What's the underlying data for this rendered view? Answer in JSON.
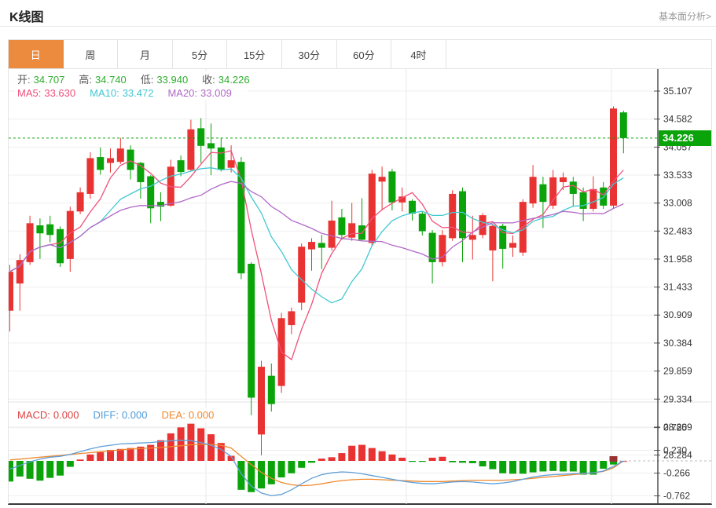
{
  "header": {
    "title": "K线图",
    "link": "基本面分析>"
  },
  "tabs": {
    "items": [
      {
        "label": "日",
        "active": true
      },
      {
        "label": "周",
        "active": false
      },
      {
        "label": "月",
        "active": false
      },
      {
        "label": "5分",
        "active": false
      },
      {
        "label": "15分",
        "active": false
      },
      {
        "label": "30分",
        "active": false
      },
      {
        "label": "60分",
        "active": false
      },
      {
        "label": "4时",
        "active": false
      }
    ],
    "active_color": "#ec8b3d"
  },
  "legend": {
    "ohlc": [
      {
        "label": "开:",
        "value": "34.707"
      },
      {
        "label": "高:",
        "value": "34.740"
      },
      {
        "label": "低:",
        "value": "33.940"
      },
      {
        "label": "收:",
        "value": "34.226"
      }
    ],
    "ohlc_value_color": "#2eae2e",
    "ma": [
      {
        "label": "MA5:",
        "value": "33.630",
        "color": "#f0507a"
      },
      {
        "label": "MA10:",
        "value": "33.472",
        "color": "#41c8d2"
      },
      {
        "label": "MA20:",
        "value": "33.009",
        "color": "#b168c8"
      }
    ]
  },
  "macd_legend": [
    {
      "label": "MACD:",
      "value": "0.000",
      "color": "#dd4444"
    },
    {
      "label": "DIFF:",
      "value": "0.000",
      "color": "#4f9bd8"
    },
    {
      "label": "DEA:",
      "value": "0.000",
      "color": "#f0892e"
    }
  ],
  "chart_data": {
    "type": "candlestick+macd",
    "title": "K线图",
    "period_selected": "日",
    "current_price": 34.226,
    "current_price_label": "34.226",
    "price_axis": {
      "ticks": [
        "35.107",
        "34.582",
        "34.057",
        "33.533",
        "33.008",
        "32.483",
        "31.958",
        "31.433",
        "30.909",
        "30.384",
        "29.859",
        "29.334",
        "28.809",
        "28.284"
      ],
      "min": 28.284,
      "max": 35.107
    },
    "candles": [
      [
        30.99,
        31.85,
        30.6,
        31.72
      ],
      [
        31.5,
        32.05,
        30.99,
        31.94
      ],
      [
        31.9,
        32.77,
        31.85,
        32.63
      ],
      [
        32.59,
        32.72,
        31.96,
        32.44
      ],
      [
        32.61,
        32.77,
        32.27,
        32.41
      ],
      [
        32.52,
        32.57,
        31.81,
        31.88
      ],
      [
        31.96,
        32.94,
        31.72,
        32.86
      ],
      [
        32.85,
        33.3,
        32.8,
        33.21
      ],
      [
        33.18,
        33.96,
        33.09,
        33.85
      ],
      [
        33.87,
        34.05,
        33.54,
        33.63
      ],
      [
        33.76,
        34.03,
        33.58,
        33.85
      ],
      [
        33.78,
        34.23,
        33.74,
        34.03
      ],
      [
        34.01,
        34.09,
        33.45,
        33.63
      ],
      [
        33.76,
        33.78,
        33.09,
        33.4
      ],
      [
        33.51,
        33.53,
        32.63,
        32.91
      ],
      [
        33.03,
        33.21,
        32.67,
        32.94
      ],
      [
        32.96,
        33.82,
        32.94,
        33.69
      ],
      [
        33.81,
        33.9,
        33.51,
        33.59
      ],
      [
        33.63,
        34.57,
        33.6,
        34.39
      ],
      [
        34.41,
        34.6,
        33.76,
        34.08
      ],
      [
        34.13,
        34.5,
        33.53,
        34.03
      ],
      [
        34.05,
        34.23,
        33.6,
        33.63
      ],
      [
        33.67,
        34.09,
        33.58,
        33.81
      ],
      [
        33.78,
        33.87,
        31.58,
        31.69
      ],
      [
        31.87,
        31.9,
        29.03,
        29.36
      ],
      [
        28.67,
        30.05,
        28.28,
        29.94
      ],
      [
        29.77,
        30.0,
        29.1,
        29.24
      ],
      [
        29.58,
        30.95,
        29.45,
        30.85
      ],
      [
        30.72,
        31.05,
        30.55,
        30.98
      ],
      [
        31.14,
        32.25,
        31.0,
        32.19
      ],
      [
        32.14,
        32.35,
        31.74,
        32.28
      ],
      [
        32.26,
        32.41,
        31.77,
        32.17
      ],
      [
        32.17,
        33.05,
        32.12,
        32.68
      ],
      [
        32.74,
        32.9,
        32.32,
        32.41
      ],
      [
        32.36,
        33.01,
        32.3,
        32.63
      ],
      [
        32.59,
        33.1,
        32.3,
        32.32
      ],
      [
        32.26,
        33.63,
        32.2,
        33.56
      ],
      [
        33.41,
        33.69,
        32.87,
        33.5
      ],
      [
        33.6,
        33.65,
        32.87,
        33.02
      ],
      [
        33.02,
        33.3,
        32.85,
        33.13
      ],
      [
        33.05,
        33.08,
        32.68,
        32.81
      ],
      [
        32.81,
        32.85,
        32.4,
        32.48
      ],
      [
        32.45,
        32.5,
        31.5,
        31.9
      ],
      [
        31.9,
        32.5,
        31.82,
        32.41
      ],
      [
        32.35,
        33.25,
        32.3,
        33.18
      ],
      [
        33.23,
        33.3,
        31.9,
        32.35
      ],
      [
        32.32,
        32.77,
        31.95,
        32.41
      ],
      [
        32.41,
        32.82,
        32.35,
        32.78
      ],
      [
        32.12,
        32.62,
        31.54,
        32.58
      ],
      [
        32.58,
        32.62,
        31.78,
        32.15
      ],
      [
        32.17,
        32.4,
        32.0,
        32.26
      ],
      [
        32.08,
        33.08,
        32.02,
        33.03
      ],
      [
        33.0,
        33.72,
        32.92,
        33.5
      ],
      [
        33.36,
        33.5,
        32.54,
        33.03
      ],
      [
        32.96,
        33.63,
        32.9,
        33.49
      ],
      [
        33.4,
        33.58,
        33.25,
        33.49
      ],
      [
        33.41,
        33.5,
        32.94,
        33.18
      ],
      [
        33.21,
        33.3,
        32.67,
        32.9
      ],
      [
        32.9,
        33.51,
        32.85,
        33.27
      ],
      [
        33.3,
        33.4,
        32.9,
        32.96
      ],
      [
        32.96,
        34.82,
        32.9,
        34.78
      ],
      [
        34.707,
        34.74,
        33.94,
        34.226
      ]
    ],
    "ma_periods": [
      5,
      10,
      20
    ],
    "macd": {
      "axis_ticks": [
        "0.725",
        "0.230",
        "-0.266",
        "-0.762"
      ],
      "histogram": [
        -0.45,
        -0.34,
        -0.39,
        -0.43,
        -0.37,
        -0.32,
        -0.13,
        0.03,
        0.14,
        0.19,
        0.24,
        0.26,
        0.28,
        0.31,
        0.35,
        0.45,
        0.6,
        0.73,
        0.81,
        0.71,
        0.58,
        0.39,
        0.11,
        -0.63,
        -0.68,
        -0.6,
        -0.51,
        -0.36,
        -0.27,
        -0.15,
        -0.04,
        0.05,
        0.08,
        0.17,
        0.33,
        0.35,
        0.28,
        0.21,
        0.14,
        0.07,
        -0.02,
        -0.02,
        0.07,
        0.09,
        -0.03,
        -0.04,
        -0.05,
        -0.12,
        -0.18,
        -0.27,
        -0.28,
        -0.28,
        -0.25,
        -0.23,
        -0.22,
        -0.23,
        -0.23,
        -0.3,
        -0.3,
        -0.17,
        -0.08,
        0.0
      ],
      "diff": [
        -0.18,
        -0.1,
        -0.02,
        0.04,
        0.08,
        0.1,
        0.14,
        0.2,
        0.26,
        0.31,
        0.34,
        0.37,
        0.38,
        0.39,
        0.4,
        0.42,
        0.44,
        0.45,
        0.44,
        0.4,
        0.34,
        0.25,
        0.1,
        -0.28,
        -0.55,
        -0.7,
        -0.76,
        -0.73,
        -0.63,
        -0.5,
        -0.38,
        -0.3,
        -0.26,
        -0.24,
        -0.25,
        -0.28,
        -0.32,
        -0.36,
        -0.4,
        -0.44,
        -0.47,
        -0.49,
        -0.5,
        -0.48,
        -0.46,
        -0.45,
        -0.46,
        -0.48,
        -0.5,
        -0.48,
        -0.45,
        -0.4,
        -0.35,
        -0.32,
        -0.3,
        -0.29,
        -0.28,
        -0.27,
        -0.26,
        -0.22,
        -0.12,
        0.0
      ],
      "dea": [
        0.02,
        0.04,
        0.06,
        0.08,
        0.1,
        0.12,
        0.14,
        0.16,
        0.18,
        0.2,
        0.22,
        0.24,
        0.26,
        0.27,
        0.28,
        0.29,
        0.31,
        0.33,
        0.35,
        0.36,
        0.36,
        0.34,
        0.28,
        0.1,
        -0.08,
        -0.25,
        -0.38,
        -0.47,
        -0.52,
        -0.54,
        -0.53,
        -0.5,
        -0.46,
        -0.43,
        -0.41,
        -0.4,
        -0.4,
        -0.41,
        -0.42,
        -0.43,
        -0.44,
        -0.45,
        -0.45,
        -0.45,
        -0.44,
        -0.43,
        -0.42,
        -0.42,
        -0.42,
        -0.42,
        -0.41,
        -0.4,
        -0.38,
        -0.36,
        -0.34,
        -0.32,
        -0.3,
        -0.28,
        -0.26,
        -0.23,
        -0.15,
        0.0
      ]
    },
    "colors": {
      "up": "#e93333",
      "down": "#0aa30a",
      "price_tag_bg": "#0aa30a",
      "current_price_line": "#0aa30a",
      "ma5": "#f0507a",
      "ma10": "#41c8d2",
      "ma20": "#b168c8",
      "diff_line": "#5f9fd8",
      "dea_line": "#f0892e",
      "axis": "#444444",
      "grid": "#efefef"
    },
    "legend_hints": {
      "grid": "on",
      "x_labels": "none",
      "axis_side": "right"
    }
  }
}
